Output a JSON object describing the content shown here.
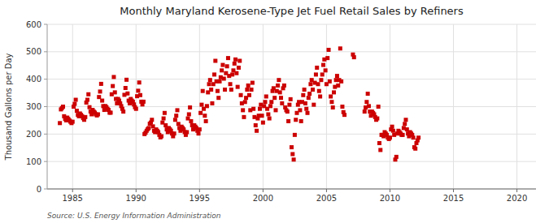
{
  "chart_data": {
    "type": "scatter",
    "title": "Monthly Maryland Kerosene-Type Jet Fuel Retail Sales by Refiners",
    "y_label": "Thousand Gallons per Day",
    "annotations": [
      "Source: U.S. Energy Information Administration"
    ],
    "color": "#cc0000",
    "marker": "square",
    "grid": true,
    "xlim": [
      1983.0,
      2021.5
    ],
    "ylim": [
      0,
      600
    ],
    "xticks": [
      1985,
      1990,
      1995,
      2000,
      2005,
      2010,
      2015,
      2020
    ],
    "yticks": [
      0,
      100,
      200,
      300,
      400,
      500,
      600
    ],
    "x": [
      1984.0,
      1984.083,
      1984.167,
      1984.25,
      1984.333,
      1984.417,
      1984.5,
      1984.583,
      1984.667,
      1984.75,
      1984.833,
      1984.917,
      1985.0,
      1985.083,
      1985.167,
      1985.25,
      1985.333,
      1985.417,
      1985.5,
      1985.583,
      1985.667,
      1985.75,
      1985.833,
      1985.917,
      1986.0,
      1986.083,
      1986.167,
      1986.25,
      1986.333,
      1986.417,
      1986.5,
      1986.583,
      1986.667,
      1986.75,
      1986.833,
      1986.917,
      1987.0,
      1987.083,
      1987.167,
      1987.25,
      1987.333,
      1987.417,
      1987.5,
      1987.583,
      1987.667,
      1987.75,
      1987.833,
      1987.917,
      1988.0,
      1988.083,
      1988.167,
      1988.25,
      1988.333,
      1988.417,
      1988.5,
      1988.583,
      1988.667,
      1988.75,
      1988.833,
      1988.917,
      1989.0,
      1989.083,
      1989.167,
      1989.25,
      1989.333,
      1989.417,
      1989.5,
      1989.583,
      1989.667,
      1989.75,
      1989.833,
      1989.917,
      1990.0,
      1990.083,
      1990.167,
      1990.25,
      1990.333,
      1990.417,
      1990.5,
      1990.583,
      1990.667,
      1990.75,
      1990.833,
      1990.917,
      1991.0,
      1991.083,
      1991.167,
      1991.25,
      1991.333,
      1991.417,
      1991.5,
      1991.583,
      1991.667,
      1991.75,
      1991.833,
      1991.917,
      1992.0,
      1992.083,
      1992.167,
      1992.25,
      1992.333,
      1992.417,
      1992.5,
      1992.583,
      1992.667,
      1992.75,
      1992.833,
      1992.917,
      1993.0,
      1993.083,
      1993.167,
      1993.25,
      1993.333,
      1993.417,
      1993.5,
      1993.583,
      1993.667,
      1993.75,
      1993.833,
      1993.917,
      1994.0,
      1994.083,
      1994.167,
      1994.25,
      1994.333,
      1994.417,
      1994.5,
      1994.583,
      1994.667,
      1994.75,
      1994.833,
      1994.917,
      1995.0,
      1995.083,
      1995.167,
      1995.25,
      1995.333,
      1995.417,
      1995.5,
      1995.583,
      1995.667,
      1995.75,
      1995.833,
      1995.917,
      1996.0,
      1996.083,
      1996.167,
      1996.25,
      1996.333,
      1996.417,
      1996.5,
      1996.583,
      1996.667,
      1996.75,
      1996.833,
      1996.917,
      1997.0,
      1997.083,
      1997.167,
      1997.25,
      1997.333,
      1997.417,
      1997.5,
      1997.583,
      1997.667,
      1997.75,
      1997.833,
      1997.917,
      1998.0,
      1998.083,
      1998.167,
      1998.25,
      1998.333,
      1998.417,
      1998.5,
      1998.583,
      1998.667,
      1998.75,
      1998.833,
      1998.917,
      1999.0,
      1999.083,
      1999.167,
      1999.25,
      1999.333,
      1999.417,
      1999.5,
      1999.583,
      1999.667,
      1999.75,
      1999.833,
      1999.917,
      2000.0,
      2000.083,
      2000.167,
      2000.25,
      2000.333,
      2000.417,
      2000.5,
      2000.583,
      2000.667,
      2000.75,
      2000.833,
      2000.917,
      2001.0,
      2001.083,
      2001.167,
      2001.25,
      2001.333,
      2001.417,
      2001.5,
      2001.583,
      2001.667,
      2001.75,
      2001.833,
      2001.917,
      2002.0,
      2002.083,
      2002.167,
      2002.25,
      2002.333,
      2002.417,
      2002.5,
      2002.583,
      2002.667,
      2002.75,
      2002.833,
      2002.917,
      2003.0,
      2003.083,
      2003.167,
      2003.25,
      2003.333,
      2003.417,
      2003.5,
      2003.583,
      2003.667,
      2003.75,
      2003.833,
      2003.917,
      2004.0,
      2004.083,
      2004.167,
      2004.25,
      2004.333,
      2004.417,
      2004.5,
      2004.583,
      2004.667,
      2004.75,
      2004.833,
      2004.917,
      2005.0,
      2005.083,
      2005.167,
      2005.25,
      2005.333,
      2005.417,
      2005.5,
      2005.583,
      2005.667,
      2005.75,
      2005.833,
      2005.917,
      2006.0,
      2006.083,
      2006.167,
      2006.25,
      2006.333,
      2006.417,
      2007.083,
      2007.167,
      2008.0,
      2008.083,
      2008.167,
      2008.25,
      2008.333,
      2008.417,
      2008.5,
      2008.583,
      2008.667,
      2008.75,
      2008.833,
      2008.917,
      2009.0,
      2009.083,
      2009.167,
      2009.25,
      2009.333,
      2009.417,
      2009.5,
      2009.583,
      2009.667,
      2009.75,
      2009.833,
      2009.917,
      2010.0,
      2010.083,
      2010.167,
      2010.25,
      2010.333,
      2010.417,
      2010.5,
      2010.583,
      2010.667,
      2010.75,
      2010.833,
      2010.917,
      2011.0,
      2011.083,
      2011.167,
      2011.25,
      2011.333,
      2011.417,
      2011.5,
      2011.583,
      2011.667,
      2011.75,
      2011.833,
      2011.917,
      2012.0,
      2012.083,
      2012.167,
      2012.25
    ],
    "values": [
      240,
      290,
      295,
      300,
      265,
      255,
      250,
      260,
      255,
      250,
      245,
      240,
      245,
      300,
      310,
      325,
      285,
      270,
      265,
      275,
      270,
      265,
      258,
      252,
      262,
      315,
      325,
      345,
      298,
      282,
      272,
      288,
      282,
      278,
      272,
      268,
      272,
      335,
      355,
      383,
      322,
      302,
      288,
      302,
      298,
      292,
      288,
      278,
      278,
      345,
      375,
      408,
      352,
      328,
      312,
      328,
      322,
      312,
      302,
      292,
      282,
      343,
      368,
      398,
      348,
      322,
      312,
      328,
      322,
      318,
      308,
      298,
      292,
      338,
      358,
      388,
      342,
      318,
      308,
      318,
      200,
      205,
      212,
      218,
      222,
      238,
      242,
      252,
      228,
      212,
      207,
      217,
      212,
      207,
      197,
      188,
      192,
      242,
      257,
      277,
      232,
      217,
      207,
      222,
      217,
      212,
      202,
      192,
      202,
      252,
      267,
      287,
      237,
      222,
      212,
      227,
      222,
      217,
      207,
      197,
      207,
      257,
      272,
      297,
      247,
      232,
      217,
      232,
      227,
      222,
      212,
      202,
      217,
      277,
      307,
      357,
      292,
      267,
      247,
      302,
      352,
      382,
      397,
      362,
      312,
      382,
      417,
      467,
      392,
      357,
      332,
      392,
      407,
      432,
      452,
      402,
      362,
      422,
      447,
      477,
      412,
      382,
      362,
      417,
      432,
      457,
      472,
      422,
      372,
      442,
      467,
      342,
      312,
      287,
      262,
      317,
      332,
      362,
      377,
      342,
      287,
      362,
      387,
      292,
      262,
      232,
      212,
      257,
      267,
      292,
      307,
      267,
      242,
      302,
      317,
      337,
      292,
      272,
      257,
      302,
      317,
      357,
      367,
      332,
      287,
      357,
      377,
      397,
      352,
      332,
      312,
      367,
      377,
      297,
      287,
      282,
      247,
      307,
      327,
      152,
      127,
      107,
      197,
      252,
      277,
      307,
      317,
      287,
      247,
      317,
      342,
      362,
      312,
      292,
      277,
      332,
      347,
      382,
      397,
      362,
      307,
      387,
      417,
      442,
      382,
      357,
      337,
      397,
      417,
      452,
      472,
      432,
      382,
      477,
      507,
      392,
      337,
      317,
      297,
      352,
      372,
      397,
      412,
      377,
      397,
      512,
      392,
      300,
      280,
      270,
      490,
      480,
      282,
      297,
      317,
      347,
      302,
      282,
      267,
      282,
      277,
      272,
      262,
      252,
      257,
      300,
      167,
      142,
      197,
      197,
      192,
      207,
      202,
      197,
      187,
      182,
      187,
      217,
      227,
      212,
      197,
      107,
      117,
      202,
      212,
      207,
      202,
      197,
      197,
      222,
      237,
      252,
      217,
      202,
      192,
      207,
      202,
      197,
      187,
      152,
      147,
      167,
      177,
      187
    ]
  }
}
